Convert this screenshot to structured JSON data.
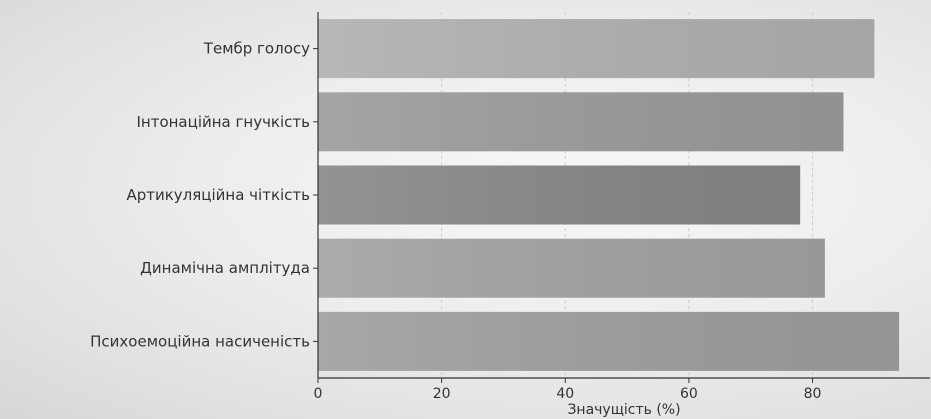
{
  "chart_data": {
    "type": "bar",
    "orientation": "horizontal",
    "categories": [
      "Тембр голосу",
      "Інтонаційна гнучкість",
      "Артикуляційна чіткість",
      "Динамічна амплітуда",
      "Психоемоційна насиченість"
    ],
    "values": [
      90,
      85,
      78,
      82,
      94
    ],
    "xlabel": "Значущість (%)",
    "ylabel": "",
    "xlim": [
      0,
      99
    ],
    "xticks": [
      0,
      20,
      40,
      60,
      80
    ],
    "xtick_labels": [
      "0",
      "20",
      "40",
      "60",
      "80"
    ],
    "grid": "vertical dashed",
    "colors": {
      "bars": [
        "#b0b0af",
        "#9b9b9a",
        "#878786",
        "#a2a2a1",
        "#9e9e9d"
      ],
      "axis": "#333333",
      "grid": "#c8c8c8"
    }
  }
}
